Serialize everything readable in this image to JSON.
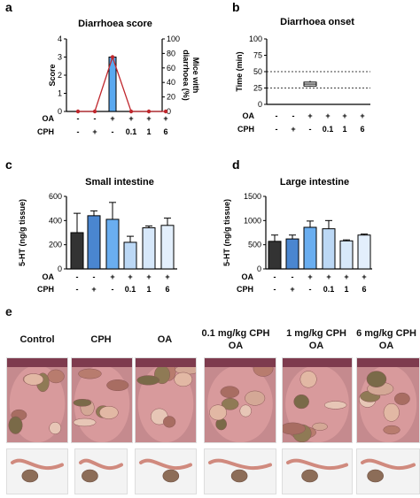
{
  "panel_letters": [
    "a",
    "b",
    "c",
    "d",
    "e"
  ],
  "treatments": {
    "oa_label": "OA",
    "cph_label": "CPH",
    "oa": [
      "-",
      "-",
      "+",
      "+",
      "+",
      "+"
    ],
    "cph": [
      "-",
      "+",
      "-",
      "0.1",
      "1",
      "6"
    ]
  },
  "chart_data": [
    {
      "id": "a",
      "type": "bar",
      "title": "Diarrhoea score",
      "ylabel": "Score",
      "ylim": [
        0,
        4
      ],
      "yticks": [
        "0",
        "1",
        "2",
        "3",
        "4"
      ],
      "values": [
        0,
        0,
        3,
        0,
        0,
        0
      ],
      "errors": [
        0,
        0,
        0,
        0,
        0,
        0
      ],
      "y2label_line1": "Mice with",
      "y2label_line2": "diarrhoea (%)",
      "y2lim": [
        0,
        100
      ],
      "y2ticks": [
        "0",
        "20",
        "40",
        "60",
        "80",
        "100"
      ],
      "line_values": [
        0,
        0,
        75,
        0,
        0,
        0
      ],
      "bar_color": "#5aa9f0",
      "line_color": "#c0272d"
    },
    {
      "id": "b",
      "type": "box",
      "title": "Diarrhoea onset",
      "ylabel": "Time (min)",
      "ylim": [
        0,
        100
      ],
      "yticks": [
        "0",
        "25",
        "50",
        "75",
        "100"
      ],
      "box": {
        "category_index": 2,
        "min": 27,
        "q1": 28,
        "median": 31,
        "q3": 34,
        "max": 36
      },
      "reference_lines": [
        25,
        50
      ]
    },
    {
      "id": "c",
      "type": "bar",
      "title": "Small intestine",
      "ylabel": "5-HT (ng/g tissue)",
      "ylim": [
        0,
        600
      ],
      "yticks": [
        "0",
        "200",
        "400",
        "600"
      ],
      "values": [
        300,
        440,
        410,
        220,
        340,
        360
      ],
      "errors": [
        160,
        40,
        140,
        50,
        15,
        60
      ],
      "colors": [
        "#333333",
        "#4a86d0",
        "#6aaef0",
        "#bcd8f5",
        "#d7e8fa",
        "#e3effc"
      ]
    },
    {
      "id": "d",
      "type": "bar",
      "title": "Large intestine",
      "ylabel": "5-HT (ng/g tissue)",
      "ylim": [
        0,
        1500
      ],
      "yticks": [
        "0",
        "500",
        "1000",
        "1500"
      ],
      "values": [
        570,
        620,
        860,
        830,
        580,
        700
      ],
      "errors": [
        130,
        80,
        130,
        170,
        20,
        20
      ],
      "colors": [
        "#333333",
        "#4a86d0",
        "#6aaef0",
        "#bcd8f5",
        "#d7e8fa",
        "#e3effc"
      ]
    }
  ],
  "photos": {
    "titles": [
      {
        "line1": "Control",
        "line2": ""
      },
      {
        "line1": "CPH",
        "line2": ""
      },
      {
        "line1": "OA",
        "line2": ""
      },
      {
        "line1": "0.1 mg/kg CPH",
        "line2": "OA"
      },
      {
        "line1": "1 mg/kg CPH",
        "line2": "OA"
      },
      {
        "line1": "6 mg/kg CPH",
        "line2": "OA"
      }
    ]
  }
}
